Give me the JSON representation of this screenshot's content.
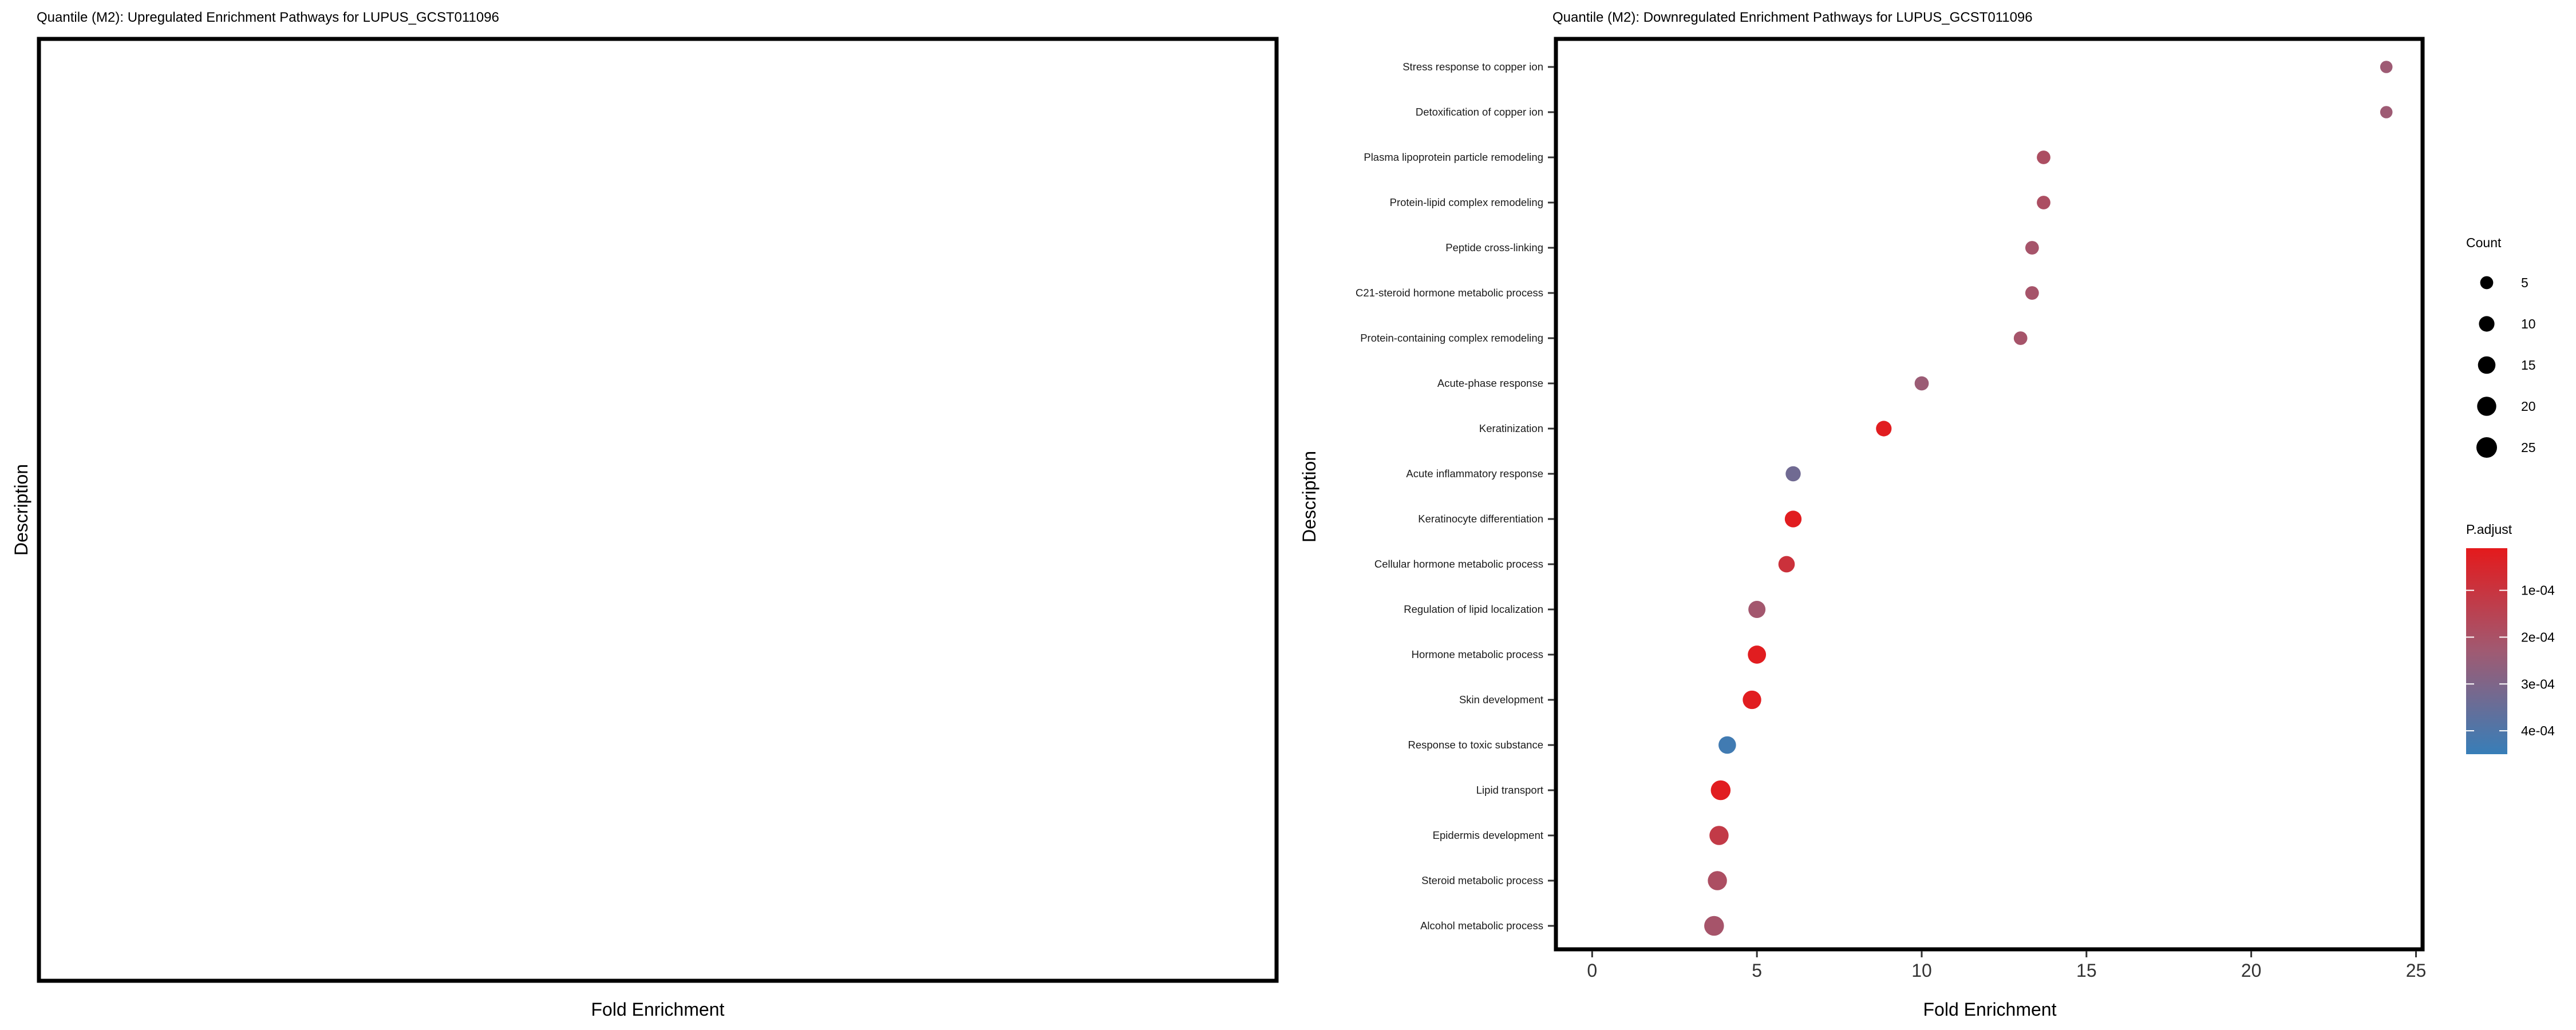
{
  "chart_data": [
    {
      "type": "scatter",
      "title": "Quantile (M2): Upregulated Enrichment Pathways for LUPUS_GCST011096",
      "xlabel": "Fold Enrichment",
      "ylabel": "Description",
      "categories": [],
      "points": []
    },
    {
      "type": "scatter",
      "title": "Quantile (M2): Downregulated Enrichment Pathways for LUPUS_GCST011096",
      "xlabel": "Fold Enrichment",
      "ylabel": "Description",
      "xlim": [
        -1.1,
        25.2
      ],
      "xticks": [
        0,
        5,
        10,
        15,
        20,
        25
      ],
      "grid": false,
      "categories": [
        "Stress response to copper ion",
        "Detoxification of copper ion",
        "Plasma lipoprotein particle remodeling",
        "Protein-lipid complex remodeling",
        "Peptide cross-linking",
        "C21-steroid hormone metabolic process",
        "Protein-containing complex remodeling",
        "Acute-phase response",
        "Keratinization",
        "Acute inflammatory response",
        "Keratinocyte differentiation",
        "Cellular hormone metabolic process",
        "Regulation of lipid localization",
        "Hormone metabolic process",
        "Skin development",
        "Response to toxic substance",
        "Lipid transport",
        "Epidermis development",
        "Steroid metabolic process",
        "Alcohol metabolic process"
      ],
      "points": [
        {
          "category": "Stress response to copper ion",
          "fold_enrichment": 24.1,
          "count": 4,
          "p_adjust": 0.000235
        },
        {
          "category": "Detoxification of copper ion",
          "fold_enrichment": 24.1,
          "count": 4,
          "p_adjust": 0.000235
        },
        {
          "category": "Plasma lipoprotein particle remodeling",
          "fold_enrichment": 13.7,
          "count": 6,
          "p_adjust": 0.00019
        },
        {
          "category": "Protein-lipid complex remodeling",
          "fold_enrichment": 13.7,
          "count": 6,
          "p_adjust": 0.00019
        },
        {
          "category": "Peptide cross-linking",
          "fold_enrichment": 13.35,
          "count": 6,
          "p_adjust": 0.00021
        },
        {
          "category": "C21-steroid hormone metabolic process",
          "fold_enrichment": 13.35,
          "count": 6,
          "p_adjust": 0.00021
        },
        {
          "category": "Protein-containing complex remodeling",
          "fold_enrichment": 13.0,
          "count": 6,
          "p_adjust": 0.00021
        },
        {
          "category": "Acute-phase response",
          "fold_enrichment": 10.0,
          "count": 7,
          "p_adjust": 0.00024
        },
        {
          "category": "Keratinization",
          "fold_enrichment": 8.85,
          "count": 10,
          "p_adjust": 2e-05
        },
        {
          "category": "Acute inflammatory response",
          "fold_enrichment": 6.1,
          "count": 9,
          "p_adjust": 0.00033
        },
        {
          "category": "Keratinocyte differentiation",
          "fold_enrichment": 6.1,
          "count": 13,
          "p_adjust": 2e-05
        },
        {
          "category": "Cellular hormone metabolic process",
          "fold_enrichment": 5.9,
          "count": 12,
          "p_adjust": 9e-05
        },
        {
          "category": "Regulation of lipid localization",
          "fold_enrichment": 5.0,
          "count": 14,
          "p_adjust": 0.00022
        },
        {
          "category": "Hormone metabolic process",
          "fold_enrichment": 5.0,
          "count": 17,
          "p_adjust": 2e-05
        },
        {
          "category": "Skin development",
          "fold_enrichment": 4.85,
          "count": 18,
          "p_adjust": 2e-05
        },
        {
          "category": "Response to toxic substance",
          "fold_enrichment": 4.1,
          "count": 15,
          "p_adjust": 0.00043
        },
        {
          "category": "Lipid transport",
          "fold_enrichment": 3.9,
          "count": 22,
          "p_adjust": 2e-05
        },
        {
          "category": "Epidermis development",
          "fold_enrichment": 3.85,
          "count": 20,
          "p_adjust": 0.00012
        },
        {
          "category": "Steroid metabolic process",
          "fold_enrichment": 3.8,
          "count": 20,
          "p_adjust": 0.00019
        },
        {
          "category": "Alcohol metabolic process",
          "fold_enrichment": 3.7,
          "count": 22,
          "p_adjust": 0.00021
        }
      ],
      "legend": {
        "position": "right",
        "size_title": "Count",
        "size_breaks": [
          5,
          10,
          15,
          20,
          25
        ],
        "color_title": "P.adjust",
        "color_breaks": [
          0.0001,
          0.0002,
          0.0003,
          0.0004
        ],
        "color_labels": [
          "1e-04",
          "2e-04",
          "3e-04",
          "4e-04"
        ],
        "color_low": "#E41A1C",
        "color_mid": "#A05A72",
        "color_high": "#377EB8",
        "color_range": [
          1e-05,
          0.00045
        ]
      }
    }
  ]
}
